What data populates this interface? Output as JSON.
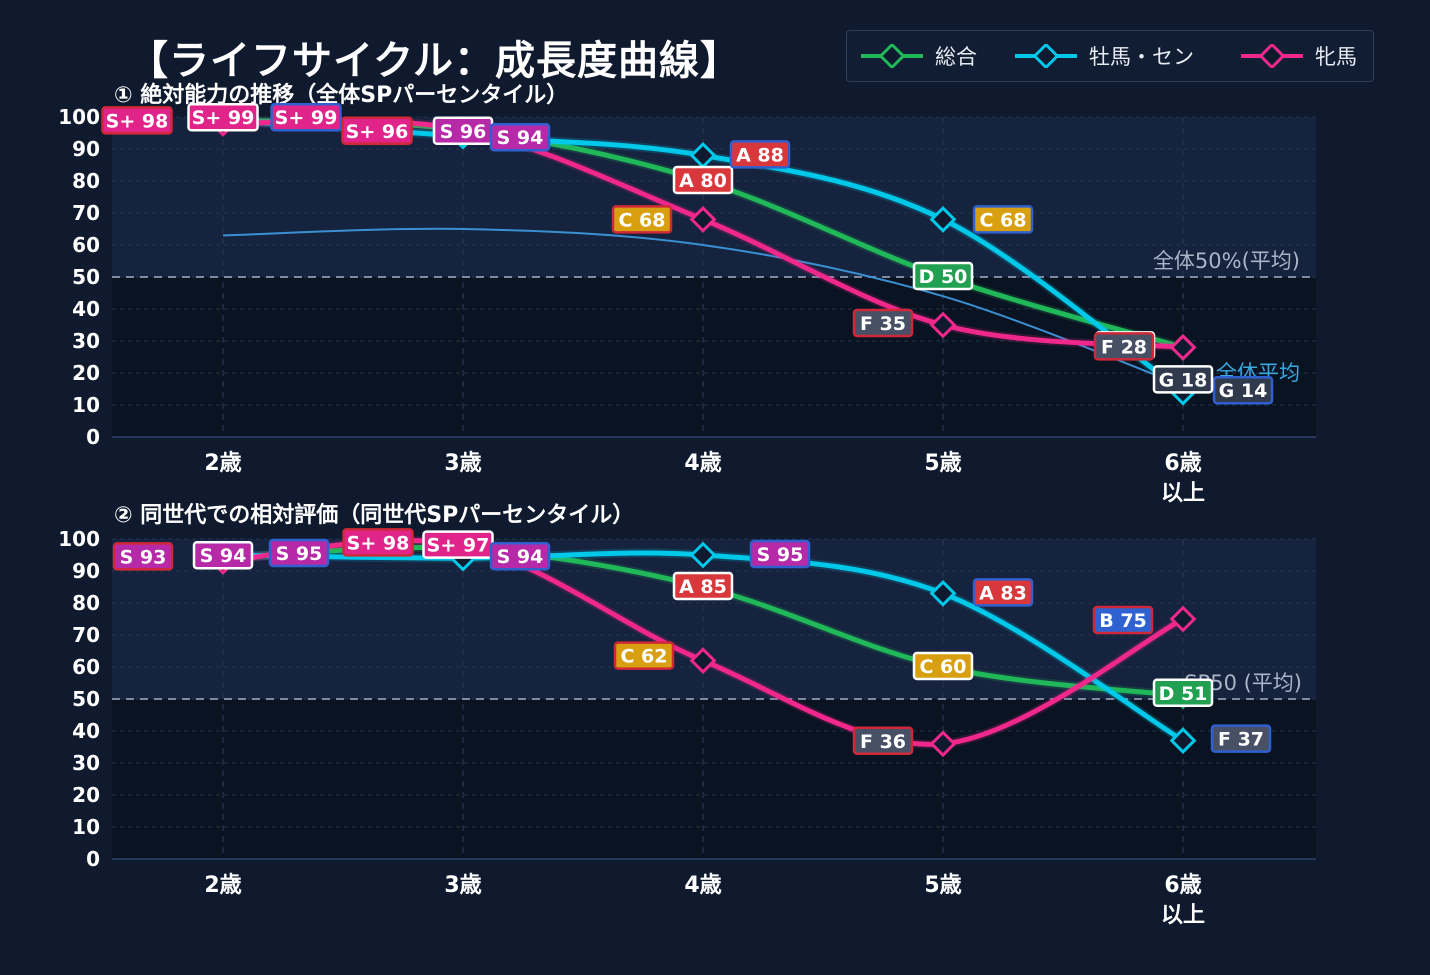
{
  "title": "【ライフサイクル：成長度曲線】",
  "colors": {
    "background": "#0f1a2e",
    "series_total": "#20b858",
    "series_male": "#00c8e8",
    "series_female": "#f0288c",
    "average_line": "#3a8fd0",
    "reference_line": "#7f8aa2"
  },
  "legend": [
    {
      "name": "総合",
      "color": "#20b858"
    },
    {
      "name": "牡馬・セン",
      "color": "#00c8e8"
    },
    {
      "name": "牝馬",
      "color": "#f0288c"
    }
  ],
  "chart_data": [
    {
      "type": "line",
      "title": "① 絶対能力の推移（全体SPパーセンタイル）",
      "categories": [
        "2歳",
        "3歳",
        "4歳",
        "5歳",
        "6歳\n以上"
      ],
      "ylim": [
        0,
        100
      ],
      "yticks": [
        0,
        10,
        20,
        30,
        40,
        50,
        60,
        70,
        80,
        90,
        100
      ],
      "grid": true,
      "legend_position": "top-right",
      "reference_line": {
        "y": 50,
        "label": "全体50%(平均)"
      },
      "average_line": {
        "label": "全体平均",
        "values": [
          63,
          65,
          60,
          44,
          16
        ]
      },
      "series": [
        {
          "name": "総合",
          "values": [
            99,
            96,
            80,
            50,
            28
          ],
          "grades": [
            "S+",
            "S",
            "A",
            "D",
            "F"
          ]
        },
        {
          "name": "牡馬・セン",
          "values": [
            99,
            94,
            88,
            68,
            14
          ],
          "grades": [
            "S+",
            "S",
            "A",
            "C",
            "G"
          ]
        },
        {
          "name": "牝馬",
          "values": [
            98,
            96,
            68,
            35,
            28
          ],
          "grades": [
            "S+",
            "S+",
            "C",
            "F",
            "F"
          ]
        }
      ],
      "extra_labels": [
        {
          "x": 4,
          "grade": "G",
          "value": 18
        }
      ]
    },
    {
      "type": "line",
      "title": "② 同世代での相対評価（同世代SPパーセンタイル）",
      "categories": [
        "2歳",
        "3歳",
        "4歳",
        "5歳",
        "6歳\n以上"
      ],
      "ylim": [
        0,
        100
      ],
      "yticks": [
        0,
        10,
        20,
        30,
        40,
        50,
        60,
        70,
        80,
        90,
        100
      ],
      "grid": true,
      "reference_line": {
        "y": 50,
        "label": "SP50 (平均)"
      },
      "series": [
        {
          "name": "総合",
          "values": [
            94,
            97,
            85,
            60,
            51
          ],
          "grades": [
            "S",
            "S+",
            "A",
            "C",
            "D"
          ]
        },
        {
          "name": "牡馬・セン",
          "values": [
            95,
            94,
            95,
            83,
            37
          ],
          "grades": [
            "S",
            "S",
            "S",
            "A",
            "F"
          ]
        },
        {
          "name": "牝馬",
          "values": [
            93,
            98,
            62,
            36,
            75
          ],
          "grades": [
            "S",
            "S+",
            "C",
            "F",
            "B"
          ]
        }
      ]
    }
  ]
}
